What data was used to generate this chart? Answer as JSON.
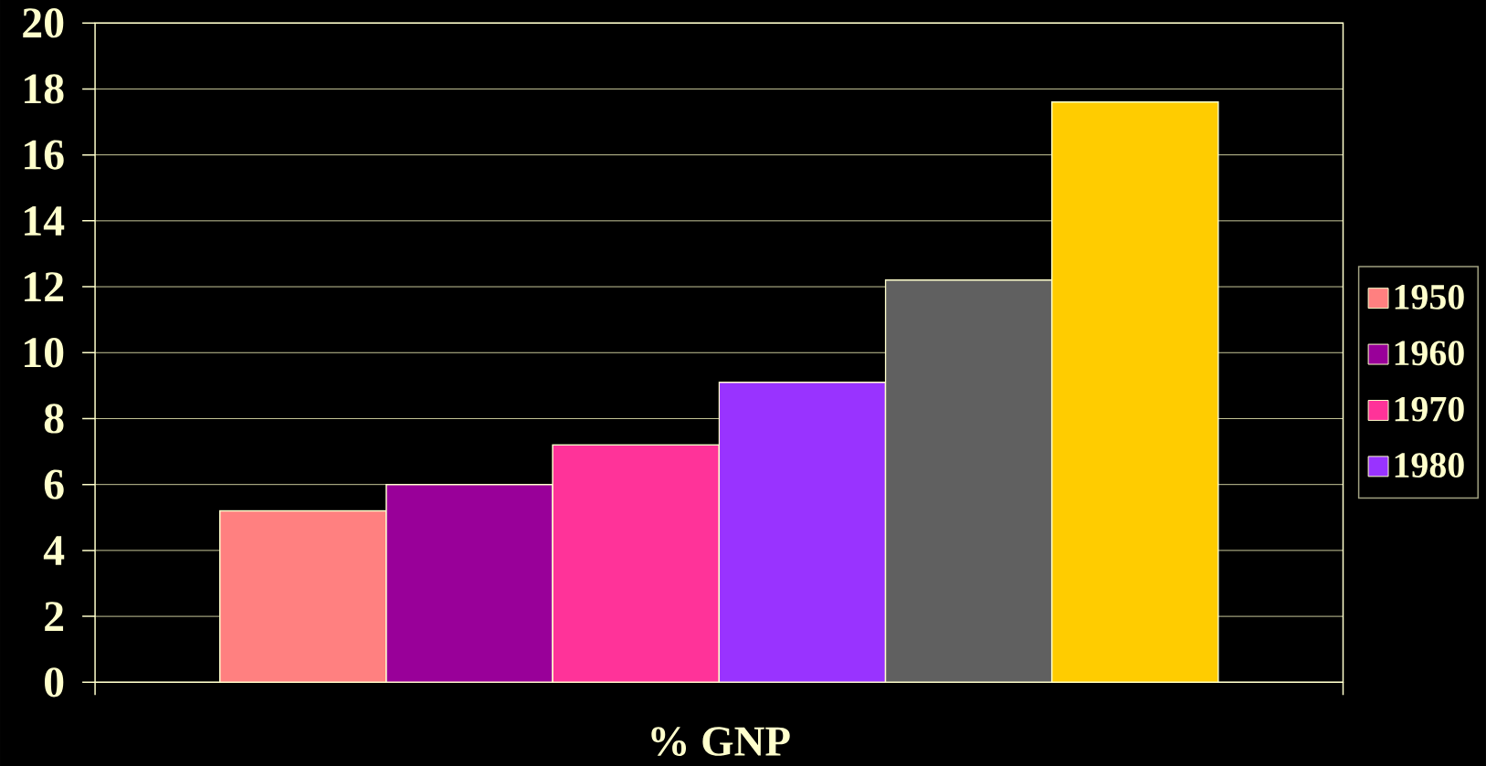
{
  "chart_data": {
    "type": "bar",
    "categories": [
      "% GNP"
    ],
    "series": [
      {
        "name": "1950",
        "color": "#ff8080",
        "values": [
          5.2
        ]
      },
      {
        "name": "1960",
        "color": "#990099",
        "values": [
          6.0
        ]
      },
      {
        "name": "1970",
        "color": "#ff3399",
        "values": [
          7.2
        ]
      },
      {
        "name": "1980",
        "color": "#9933ff",
        "values": [
          9.1
        ]
      },
      {
        "color": "#606060",
        "values": [
          12.2
        ]
      },
      {
        "color": "#ffcc00",
        "values": [
          17.6
        ]
      }
    ],
    "ylim": [
      0,
      20
    ],
    "yticks": [
      0,
      2,
      4,
      6,
      8,
      10,
      12,
      14,
      16,
      18,
      20
    ],
    "grid": "y",
    "legend": "right"
  }
}
